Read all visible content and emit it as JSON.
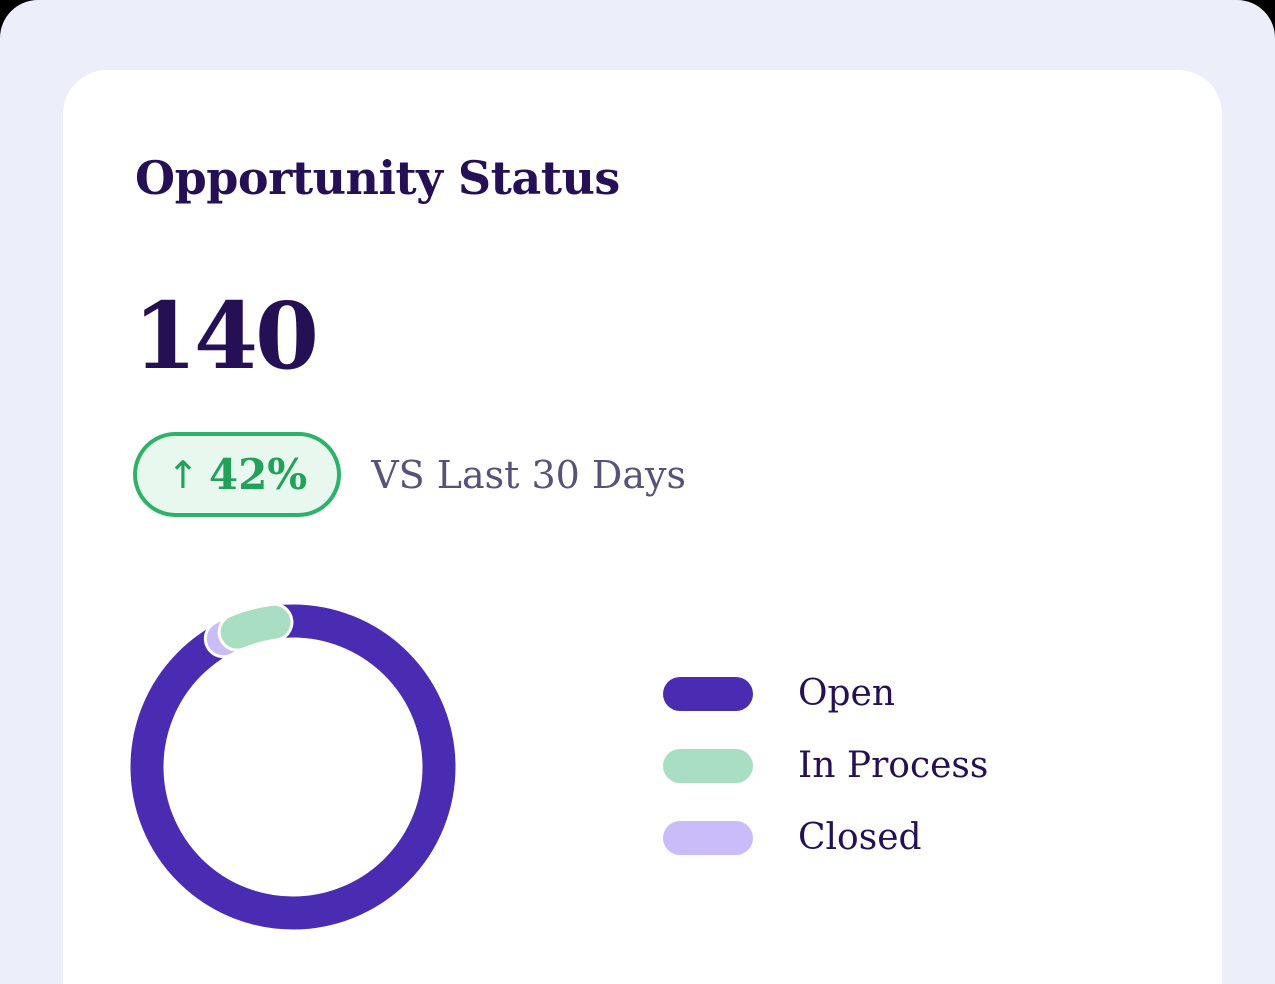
{
  "card": {
    "title": "Opportunity Status",
    "metric_value": "140",
    "badge": {
      "arrow": "↑",
      "value": "42%"
    },
    "comparison_label": "VS Last 30 Days"
  },
  "legend": {
    "items": [
      {
        "label": "Open",
        "color_key": "chart_open"
      },
      {
        "label": "In Process",
        "color_key": "chart_in_process"
      },
      {
        "label": "Closed",
        "color_key": "chart_closed"
      }
    ]
  },
  "colors": {
    "page_bg": "#ECEEFA",
    "card_bg": "#FFFFFF",
    "heading_text": "#251056",
    "muted_text": "#575277",
    "badge_border": "#2EB269",
    "badge_text": "#21A159",
    "badge_bg": "#E9F8EF",
    "chart_open": "#4A2CB2",
    "chart_in_process": "#A9DEC2",
    "chart_closed": "#C9BCF8",
    "segment_outline": "#FFFFFF"
  },
  "chart_data": {
    "type": "pie",
    "title": "Opportunity Status",
    "donut": true,
    "total": 140,
    "labels": [
      "Open",
      "In Process",
      "Closed"
    ],
    "values": [
      128,
      9,
      3
    ],
    "colors": [
      "#4A2CB2",
      "#A9DEC2",
      "#C9BCF8"
    ],
    "legend_position": "right",
    "render": {
      "size": 326,
      "radius": 146,
      "stroke_width": 33,
      "outline_width": 39,
      "base_color_key": "chart_open",
      "arcs": [
        {
          "label": "Closed",
          "color_key": "chart_closed",
          "start_deg": -28.5,
          "end_deg": -20
        },
        {
          "label": "In Process",
          "color_key": "chart_in_process",
          "start_deg": -22.5,
          "end_deg": -7.5
        }
      ]
    }
  }
}
